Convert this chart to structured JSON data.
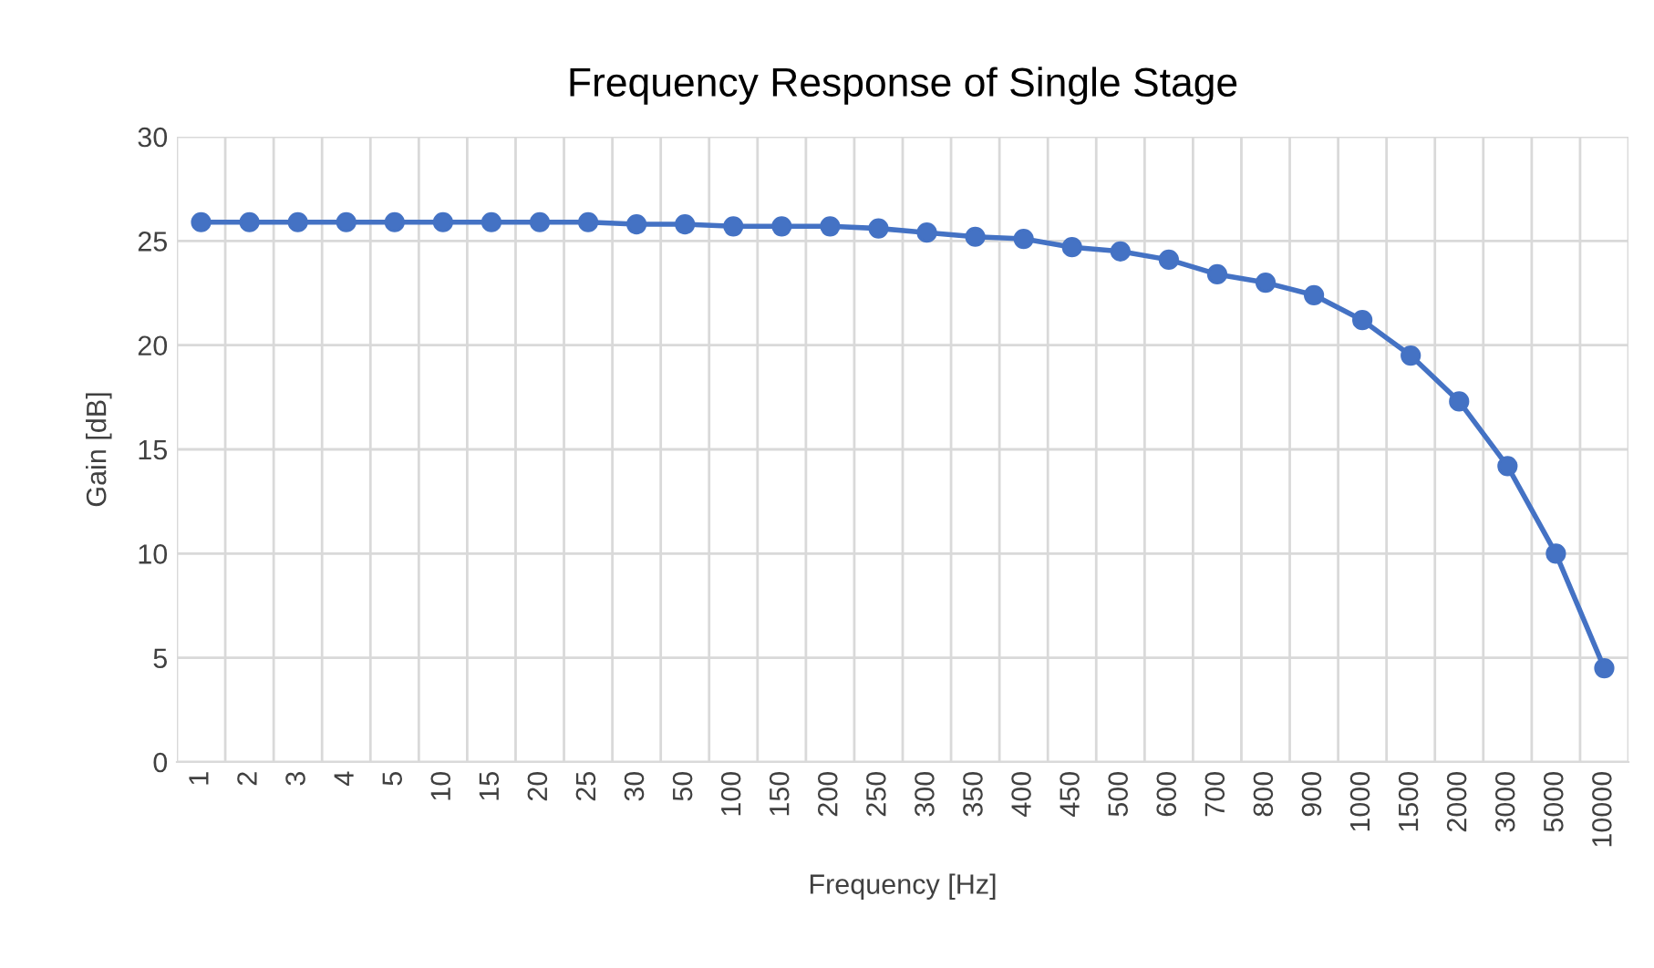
{
  "chart_data": {
    "type": "line",
    "title": "Frequency Response of Single Stage",
    "xlabel": "Frequency [Hz]",
    "ylabel": "Gain [dB]",
    "categories": [
      "1",
      "2",
      "3",
      "4",
      "5",
      "10",
      "15",
      "20",
      "25",
      "30",
      "50",
      "100",
      "150",
      "200",
      "250",
      "300",
      "350",
      "400",
      "450",
      "500",
      "600",
      "700",
      "800",
      "900",
      "1000",
      "1500",
      "2000",
      "3000",
      "5000",
      "10000"
    ],
    "series": [
      {
        "color": "#4472c4",
        "values": [
          25.9,
          25.9,
          25.9,
          25.9,
          25.9,
          25.9,
          25.9,
          25.9,
          25.9,
          25.8,
          25.8,
          25.7,
          25.7,
          25.7,
          25.6,
          25.4,
          25.2,
          25.1,
          24.7,
          24.5,
          24.1,
          23.4,
          23.0,
          22.4,
          21.2,
          19.5,
          17.3,
          14.2,
          10.0,
          4.5
        ]
      }
    ],
    "ylim": [
      0,
      30
    ],
    "yticks": [
      0,
      5,
      10,
      15,
      20,
      25,
      30
    ],
    "grid": true,
    "marker": "circle",
    "line_style": "solid"
  }
}
